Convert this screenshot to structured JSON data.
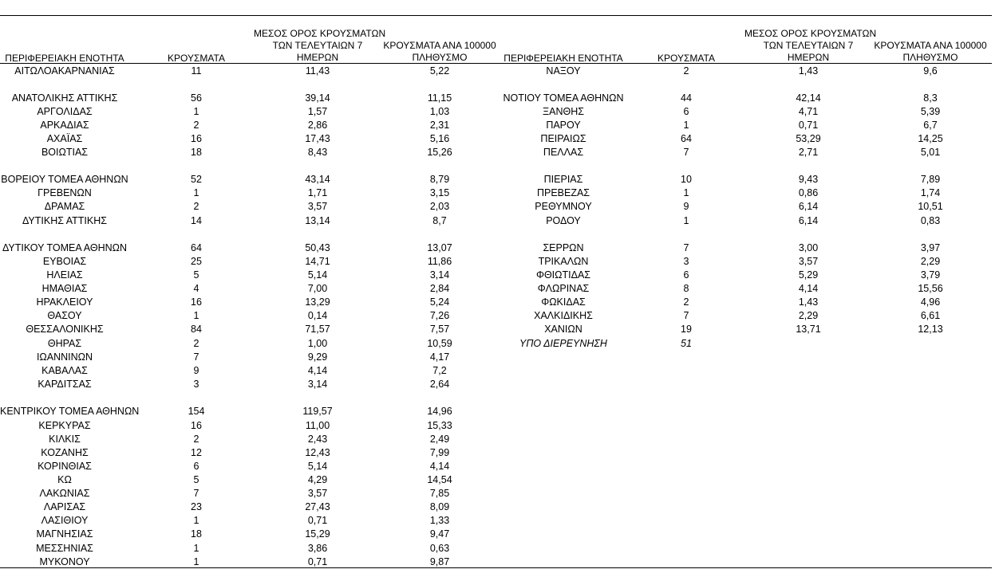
{
  "headers": {
    "region": "ΠΕΡΙΦΕΡΕΙΑΚΗ ΕΝΟΤΗΤΑ",
    "cases": "ΚΡΟΥΣΜΑΤΑ",
    "avg_line1": "ΜΕΣΟΣ ΟΡΟΣ ΚΡΟΥΣΜΑΤΩΝ",
    "avg_line2": "ΤΩΝ ΤΕΛΕΥΤΑΙΩΝ 7",
    "avg_line3": "ΗΜΕΡΩΝ",
    "per100k_line1": "ΚΡΟΥΣΜΑΤΑ ΑΝΑ 100000",
    "per100k_line2": "ΠΛΗΘΥΣΜΟ"
  },
  "left_rows": [
    {
      "r": "ΑΙΤΩΛΟΑΚΑΡΝΑΝΙΑΣ",
      "c": "11",
      "a": "11,43",
      "p": "5,22"
    },
    {
      "r": "ΑΝΑΤΟΛΙΚΗΣ ΑΤΤΙΚΗΣ",
      "c": "56",
      "a": "39,14",
      "p": "11,15"
    },
    {
      "r": "ΑΡΓΟΛΙΔΑΣ",
      "c": "1",
      "a": "1,57",
      "p": "1,03"
    },
    {
      "r": "ΑΡΚΑΔΙΑΣ",
      "c": "2",
      "a": "2,86",
      "p": "2,31"
    },
    {
      "r": "ΑΧΑΪΑΣ",
      "c": "16",
      "a": "17,43",
      "p": "5,16"
    },
    {
      "r": "ΒΟΙΩΤΙΑΣ",
      "c": "18",
      "a": "8,43",
      "p": "15,26"
    },
    {
      "r": "ΒΟΡΕΙΟΥ ΤΟΜΕΑ ΑΘΗΝΩΝ",
      "c": "52",
      "a": "43,14",
      "p": "8,79"
    },
    {
      "r": "ΓΡΕΒΕΝΩΝ",
      "c": "1",
      "a": "1,71",
      "p": "3,15"
    },
    {
      "r": "ΔΡΑΜΑΣ",
      "c": "2",
      "a": "3,57",
      "p": "2,03"
    },
    {
      "r": "ΔΥΤΙΚΗΣ ΑΤΤΙΚΗΣ",
      "c": "14",
      "a": "13,14",
      "p": "8,7"
    },
    {
      "r": "ΔΥΤΙΚΟΥ ΤΟΜΕΑ ΑΘΗΝΩΝ",
      "c": "64",
      "a": "50,43",
      "p": "13,07"
    },
    {
      "r": "ΕΥΒΟΙΑΣ",
      "c": "25",
      "a": "14,71",
      "p": "11,86"
    },
    {
      "r": "ΗΛΕΙΑΣ",
      "c": "5",
      "a": "5,14",
      "p": "3,14"
    },
    {
      "r": "ΗΜΑΘΙΑΣ",
      "c": "4",
      "a": "7,00",
      "p": "2,84"
    },
    {
      "r": "ΗΡΑΚΛΕΙΟΥ",
      "c": "16",
      "a": "13,29",
      "p": "5,24"
    },
    {
      "r": "ΘΑΣΟΥ",
      "c": "1",
      "a": "0,14",
      "p": "7,26"
    },
    {
      "r": "ΘΕΣΣΑΛΟΝΙΚΗΣ",
      "c": "84",
      "a": "71,57",
      "p": "7,57"
    },
    {
      "r": "ΘΗΡΑΣ",
      "c": "2",
      "a": "1,00",
      "p": "10,59"
    },
    {
      "r": "ΙΩΑΝΝΙΝΩΝ",
      "c": "7",
      "a": "9,29",
      "p": "4,17"
    },
    {
      "r": "ΚΑΒΑΛΑΣ",
      "c": "9",
      "a": "4,14",
      "p": "7,2"
    },
    {
      "r": "ΚΑΡΔΙΤΣΑΣ",
      "c": "3",
      "a": "3,14",
      "p": "2,64"
    },
    {
      "r": "ΚΕΝΤΡΙΚΟΥ ΤΟΜΕΑ ΑΘΗΝΩΝ",
      "c": "154",
      "a": "119,57",
      "p": "14,96"
    },
    {
      "r": "ΚΕΡΚΥΡΑΣ",
      "c": "16",
      "a": "11,00",
      "p": "15,33"
    },
    {
      "r": "ΚΙΛΚΙΣ",
      "c": "2",
      "a": "2,43",
      "p": "2,49"
    },
    {
      "r": "ΚΟΖΑΝΗΣ",
      "c": "12",
      "a": "12,43",
      "p": "7,99"
    },
    {
      "r": "ΚΟΡΙΝΘΙΑΣ",
      "c": "6",
      "a": "5,14",
      "p": "4,14"
    },
    {
      "r": "ΚΩ",
      "c": "5",
      "a": "4,29",
      "p": "14,54"
    },
    {
      "r": "ΛΑΚΩΝΙΑΣ",
      "c": "7",
      "a": "3,57",
      "p": "7,85"
    },
    {
      "r": "ΛΑΡΙΣΑΣ",
      "c": "23",
      "a": "27,43",
      "p": "8,09"
    },
    {
      "r": "ΛΑΣΙΘΙΟΥ",
      "c": "1",
      "a": "0,71",
      "p": "1,33"
    },
    {
      "r": "ΜΑΓΝΗΣΙΑΣ",
      "c": "18",
      "a": "15,29",
      "p": "9,47"
    },
    {
      "r": "ΜΕΣΣΗΝΙΑΣ",
      "c": "1",
      "a": "3,86",
      "p": "0,63"
    },
    {
      "r": "ΜΥΚΟΝΟΥ",
      "c": "1",
      "a": "0,71",
      "p": "9,87"
    }
  ],
  "right_rows": [
    {
      "r": "ΝΑΞΟΥ",
      "c": "2",
      "a": "1,43",
      "p": "9,6"
    },
    {
      "r": "ΝΟΤΙΟΥ ΤΟΜΕΑ ΑΘΗΝΩΝ",
      "c": "44",
      "a": "42,14",
      "p": "8,3"
    },
    {
      "r": "ΞΑΝΘΗΣ",
      "c": "6",
      "a": "4,71",
      "p": "5,39"
    },
    {
      "r": "ΠΑΡΟΥ",
      "c": "1",
      "a": "0,71",
      "p": "6,7"
    },
    {
      "r": "ΠΕΙΡΑΙΩΣ",
      "c": "64",
      "a": "53,29",
      "p": "14,25"
    },
    {
      "r": "ΠΕΛΛΑΣ",
      "c": "7",
      "a": "2,71",
      "p": "5,01"
    },
    {
      "r": "ΠΙΕΡΙΑΣ",
      "c": "10",
      "a": "9,43",
      "p": "7,89"
    },
    {
      "r": "ΠΡΕΒΕΖΑΣ",
      "c": "1",
      "a": "0,86",
      "p": "1,74"
    },
    {
      "r": "ΡΕΘΥΜΝΟΥ",
      "c": "9",
      "a": "6,14",
      "p": "10,51"
    },
    {
      "r": "ΡΟΔΟΥ",
      "c": "1",
      "a": "6,14",
      "p": "0,83"
    },
    {
      "r": "ΣΕΡΡΩΝ",
      "c": "7",
      "a": "3,00",
      "p": "3,97"
    },
    {
      "r": "ΤΡΙΚΑΛΩΝ",
      "c": "3",
      "a": "3,57",
      "p": "2,29"
    },
    {
      "r": "ΦΘΙΩΤΙΔΑΣ",
      "c": "6",
      "a": "5,29",
      "p": "3,79"
    },
    {
      "r": "ΦΛΩΡΙΝΑΣ",
      "c": "8",
      "a": "4,14",
      "p": "15,56"
    },
    {
      "r": "ΦΩΚΙΔΑΣ",
      "c": "2",
      "a": "1,43",
      "p": "4,96"
    },
    {
      "r": "ΧΑΛΚΙΔΙΚΗΣ",
      "c": "7",
      "a": "2,29",
      "p": "6,61"
    },
    {
      "r": "ΧΑΝΙΩΝ",
      "c": "19",
      "a": "13,71",
      "p": "12,13"
    },
    {
      "r": "ΥΠΟ ΔΙΕΡΕΥΝΗΣΗ",
      "c": "51",
      "a": "",
      "p": "",
      "italic": true
    }
  ]
}
